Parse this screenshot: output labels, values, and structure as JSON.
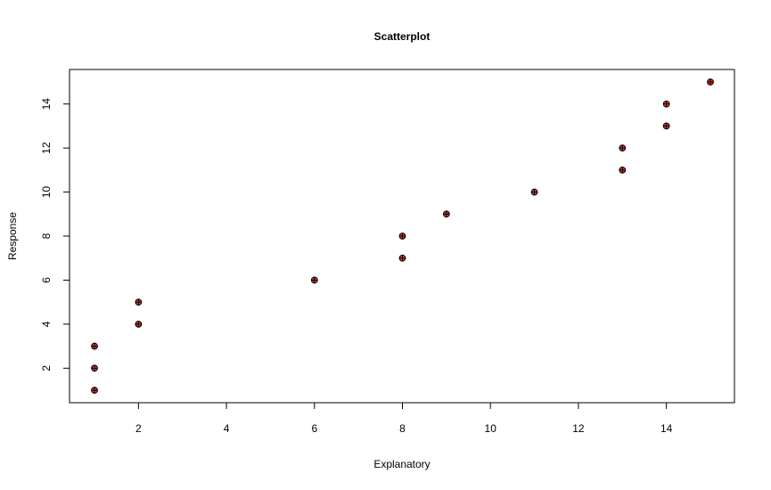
{
  "chart_data": {
    "type": "scatter",
    "title": "Scatterplot",
    "xlabel": "Explanatory",
    "ylabel": "Response",
    "xlim": [
      0.5,
      15.5
    ],
    "ylim": [
      0.5,
      15.5
    ],
    "x_ticks": [
      2,
      4,
      6,
      8,
      10,
      12,
      14
    ],
    "y_ticks": [
      2,
      4,
      6,
      8,
      10,
      12,
      14
    ],
    "grid": false,
    "points": [
      {
        "x": 1,
        "y": 1
      },
      {
        "x": 1,
        "y": 2
      },
      {
        "x": 1,
        "y": 3
      },
      {
        "x": 2,
        "y": 4
      },
      {
        "x": 2,
        "y": 5
      },
      {
        "x": 6,
        "y": 6
      },
      {
        "x": 8,
        "y": 7
      },
      {
        "x": 8,
        "y": 8
      },
      {
        "x": 9,
        "y": 9
      },
      {
        "x": 11,
        "y": 10
      },
      {
        "x": 13,
        "y": 11
      },
      {
        "x": 13,
        "y": 12
      },
      {
        "x": 14,
        "y": 13
      },
      {
        "x": 14,
        "y": 14
      },
      {
        "x": 15,
        "y": 15
      }
    ],
    "marker": {
      "fill": "#ff3030",
      "stroke": "#000000"
    }
  }
}
